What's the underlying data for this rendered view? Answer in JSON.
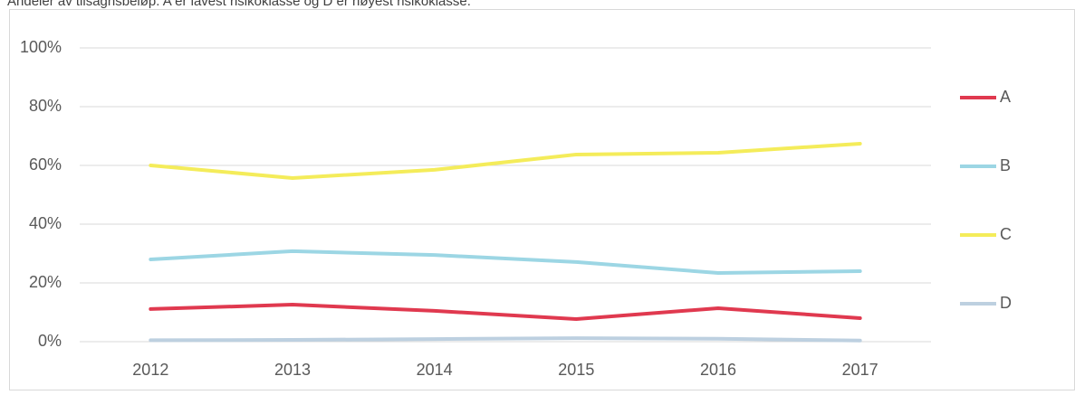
{
  "chart_data": {
    "type": "line",
    "title": "Andeler av tilsagnsbeløp. A er lavest risikoklasse og D er høyest risikoklasse.",
    "categories": [
      "2012",
      "2013",
      "2014",
      "2015",
      "2016",
      "2017"
    ],
    "series": [
      {
        "name": "A",
        "color": "#e0394f",
        "values": [
          11.1,
          12.6,
          10.5,
          7.7,
          11.4,
          8.0
        ]
      },
      {
        "name": "B",
        "color": "#9cd6e4",
        "values": [
          28.0,
          30.8,
          29.5,
          27.1,
          23.4,
          24.0
        ]
      },
      {
        "name": "C",
        "color": "#f4ec5a",
        "values": [
          60.0,
          55.7,
          58.5,
          63.7,
          64.3,
          67.4
        ]
      },
      {
        "name": "D",
        "color": "#bdd0e0",
        "values": [
          0.5,
          0.6,
          0.9,
          1.2,
          1.0,
          0.4
        ]
      }
    ],
    "ylim": [
      0,
      100
    ],
    "yticks": [
      {
        "value": 0,
        "label": "0%"
      },
      {
        "value": 20,
        "label": "20%"
      },
      {
        "value": 40,
        "label": "40%"
      },
      {
        "value": 60,
        "label": "60%"
      },
      {
        "value": 80,
        "label": "80%"
      },
      {
        "value": 100,
        "label": "100%"
      }
    ],
    "grid": true,
    "legend": "right"
  }
}
